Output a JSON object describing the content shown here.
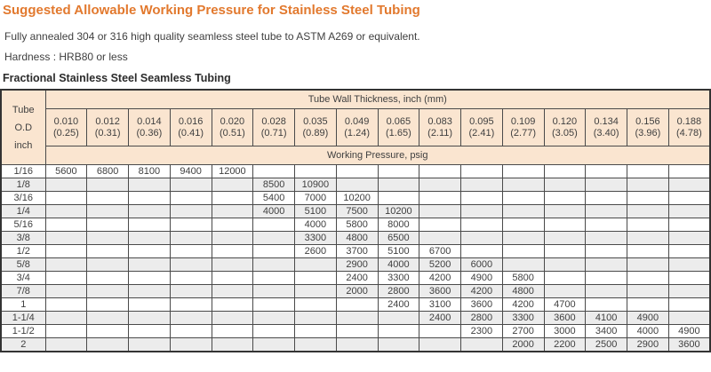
{
  "page": {
    "title": "Suggested Allowable Working Pressure for Stainless Steel Tubing",
    "spec_line_1": "Fully annealed 304 or 316 high quality seamless steel tube to ASTM A269 or equivalent.",
    "spec_line_2": "Hardness : HRB80 or less",
    "table_caption": "Fractional Stainless Steel Seamless Tubing"
  },
  "colors": {
    "title_orange": "#e2792e",
    "header_bg": "#fae5d0",
    "alt_row_bg": "#ececec",
    "border": "#4a4a4a",
    "text": "#3f3f3f"
  },
  "table": {
    "corner_header": "Tube\nO.D\ninch",
    "group_header": "Tube Wall Thickness, inch (mm)",
    "pressure_header": "Working Pressure, psig",
    "columns": [
      {
        "inch": "0.010",
        "mm": "(0.25)"
      },
      {
        "inch": "0.012",
        "mm": "(0.31)"
      },
      {
        "inch": "0.014",
        "mm": "(0.36)"
      },
      {
        "inch": "0.016",
        "mm": "(0.41)"
      },
      {
        "inch": "0.020",
        "mm": "(0.51)"
      },
      {
        "inch": "0.028",
        "mm": "(0.71)"
      },
      {
        "inch": "0.035",
        "mm": "(0.89)"
      },
      {
        "inch": "0.049",
        "mm": "(1.24)"
      },
      {
        "inch": "0.065",
        "mm": "(1.65)"
      },
      {
        "inch": "0.083",
        "mm": "(2.11)"
      },
      {
        "inch": "0.095",
        "mm": "(2.41)"
      },
      {
        "inch": "0.109",
        "mm": "(2.77)"
      },
      {
        "inch": "0.120",
        "mm": "(3.05)"
      },
      {
        "inch": "0.134",
        "mm": "(3.40)"
      },
      {
        "inch": "0.156",
        "mm": "(3.96)"
      },
      {
        "inch": "0.188",
        "mm": "(4.78)"
      }
    ],
    "rows": [
      {
        "od": "1/16",
        "values": [
          "5600",
          "6800",
          "8100",
          "9400",
          "12000",
          "",
          "",
          "",
          "",
          "",
          "",
          "",
          "",
          "",
          "",
          ""
        ]
      },
      {
        "od": "1/8",
        "values": [
          "",
          "",
          "",
          "",
          "",
          "8500",
          "10900",
          "",
          "",
          "",
          "",
          "",
          "",
          "",
          "",
          ""
        ]
      },
      {
        "od": "3/16",
        "values": [
          "",
          "",
          "",
          "",
          "",
          "5400",
          "7000",
          "10200",
          "",
          "",
          "",
          "",
          "",
          "",
          "",
          ""
        ]
      },
      {
        "od": "1/4",
        "values": [
          "",
          "",
          "",
          "",
          "",
          "4000",
          "5100",
          "7500",
          "10200",
          "",
          "",
          "",
          "",
          "",
          "",
          ""
        ]
      },
      {
        "od": "5/16",
        "values": [
          "",
          "",
          "",
          "",
          "",
          "",
          "4000",
          "5800",
          "8000",
          "",
          "",
          "",
          "",
          "",
          "",
          ""
        ]
      },
      {
        "od": "3/8",
        "values": [
          "",
          "",
          "",
          "",
          "",
          "",
          "3300",
          "4800",
          "6500",
          "",
          "",
          "",
          "",
          "",
          "",
          ""
        ]
      },
      {
        "od": "1/2",
        "values": [
          "",
          "",
          "",
          "",
          "",
          "",
          "2600",
          "3700",
          "5100",
          "6700",
          "",
          "",
          "",
          "",
          "",
          ""
        ]
      },
      {
        "od": "5/8",
        "values": [
          "",
          "",
          "",
          "",
          "",
          "",
          "",
          "2900",
          "4000",
          "5200",
          "6000",
          "",
          "",
          "",
          "",
          ""
        ]
      },
      {
        "od": "3/4",
        "values": [
          "",
          "",
          "",
          "",
          "",
          "",
          "",
          "2400",
          "3300",
          "4200",
          "4900",
          "5800",
          "",
          "",
          "",
          ""
        ]
      },
      {
        "od": "7/8",
        "values": [
          "",
          "",
          "",
          "",
          "",
          "",
          "",
          "2000",
          "2800",
          "3600",
          "4200",
          "4800",
          "",
          "",
          "",
          ""
        ]
      },
      {
        "od": "1",
        "values": [
          "",
          "",
          "",
          "",
          "",
          "",
          "",
          "",
          "2400",
          "3100",
          "3600",
          "4200",
          "4700",
          "",
          "",
          ""
        ]
      },
      {
        "od": "1-1/4",
        "values": [
          "",
          "",
          "",
          "",
          "",
          "",
          "",
          "",
          "",
          "2400",
          "2800",
          "3300",
          "3600",
          "4100",
          "4900",
          ""
        ]
      },
      {
        "od": "1-1/2",
        "values": [
          "",
          "",
          "",
          "",
          "",
          "",
          "",
          "",
          "",
          "",
          "2300",
          "2700",
          "3000",
          "3400",
          "4000",
          "4900"
        ]
      },
      {
        "od": "2",
        "values": [
          "",
          "",
          "",
          "",
          "",
          "",
          "",
          "",
          "",
          "",
          "",
          "2000",
          "2200",
          "2500",
          "2900",
          "3600"
        ]
      }
    ]
  }
}
